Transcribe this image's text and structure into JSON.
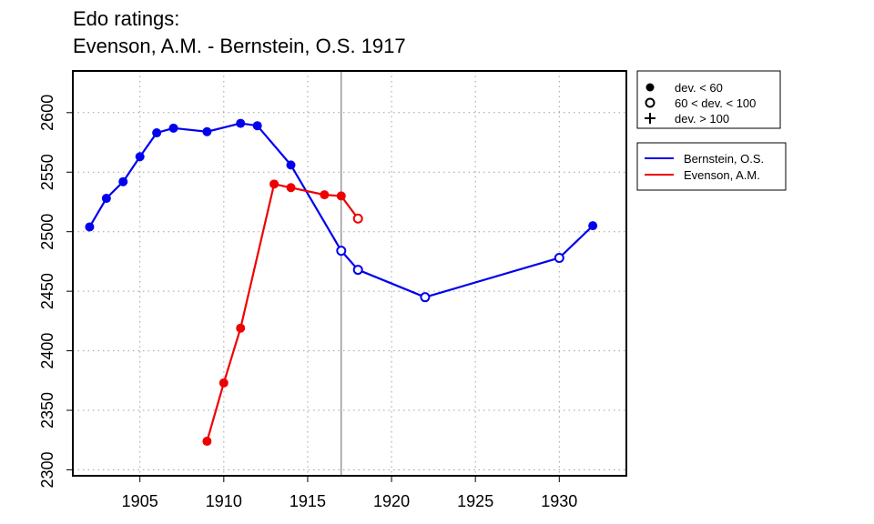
{
  "title": {
    "line1": "Edo ratings:",
    "line2": "Evenson, A.M. - Bernstein, O.S. 1917"
  },
  "chart_data": {
    "type": "line",
    "xlim": [
      1901,
      1934
    ],
    "ylim": [
      2295,
      2635
    ],
    "x_ticks": [
      1905,
      1910,
      1915,
      1920,
      1925,
      1930
    ],
    "y_ticks": [
      2300,
      2350,
      2400,
      2450,
      2500,
      2550,
      2600
    ],
    "grid": true,
    "reference_line": {
      "x": 1917,
      "color": "#808080"
    },
    "series": [
      {
        "name": "Bernstein, O.S.",
        "color": "#0000ee",
        "points": [
          {
            "x": 1902,
            "y": 2504,
            "marker": "filled"
          },
          {
            "x": 1903,
            "y": 2528,
            "marker": "filled"
          },
          {
            "x": 1904,
            "y": 2542,
            "marker": "filled"
          },
          {
            "x": 1905,
            "y": 2563,
            "marker": "filled"
          },
          {
            "x": 1906,
            "y": 2583,
            "marker": "filled"
          },
          {
            "x": 1907,
            "y": 2587,
            "marker": "filled"
          },
          {
            "x": 1909,
            "y": 2584,
            "marker": "filled"
          },
          {
            "x": 1911,
            "y": 2591,
            "marker": "filled"
          },
          {
            "x": 1912,
            "y": 2589,
            "marker": "filled"
          },
          {
            "x": 1914,
            "y": 2556,
            "marker": "filled"
          },
          {
            "x": 1917,
            "y": 2484,
            "marker": "open"
          },
          {
            "x": 1918,
            "y": 2468,
            "marker": "open"
          },
          {
            "x": 1922,
            "y": 2445,
            "marker": "open"
          },
          {
            "x": 1930,
            "y": 2478,
            "marker": "open"
          },
          {
            "x": 1932,
            "y": 2505,
            "marker": "filled"
          }
        ]
      },
      {
        "name": "Evenson, A.M.",
        "color": "#ee0000",
        "points": [
          {
            "x": 1909,
            "y": 2324,
            "marker": "filled"
          },
          {
            "x": 1910,
            "y": 2373,
            "marker": "filled"
          },
          {
            "x": 1911,
            "y": 2419,
            "marker": "filled"
          },
          {
            "x": 1913,
            "y": 2540,
            "marker": "filled"
          },
          {
            "x": 1914,
            "y": 2537,
            "marker": "filled"
          },
          {
            "x": 1916,
            "y": 2531,
            "marker": "filled"
          },
          {
            "x": 1917,
            "y": 2530,
            "marker": "filled"
          },
          {
            "x": 1918,
            "y": 2511,
            "marker": "open"
          }
        ]
      }
    ],
    "marker_legend": [
      {
        "symbol": "filled",
        "label": "dev. < 60"
      },
      {
        "symbol": "open",
        "label": "60 < dev. < 100"
      },
      {
        "symbol": "plus",
        "label": "dev. > 100"
      }
    ],
    "legend_position": "right"
  }
}
